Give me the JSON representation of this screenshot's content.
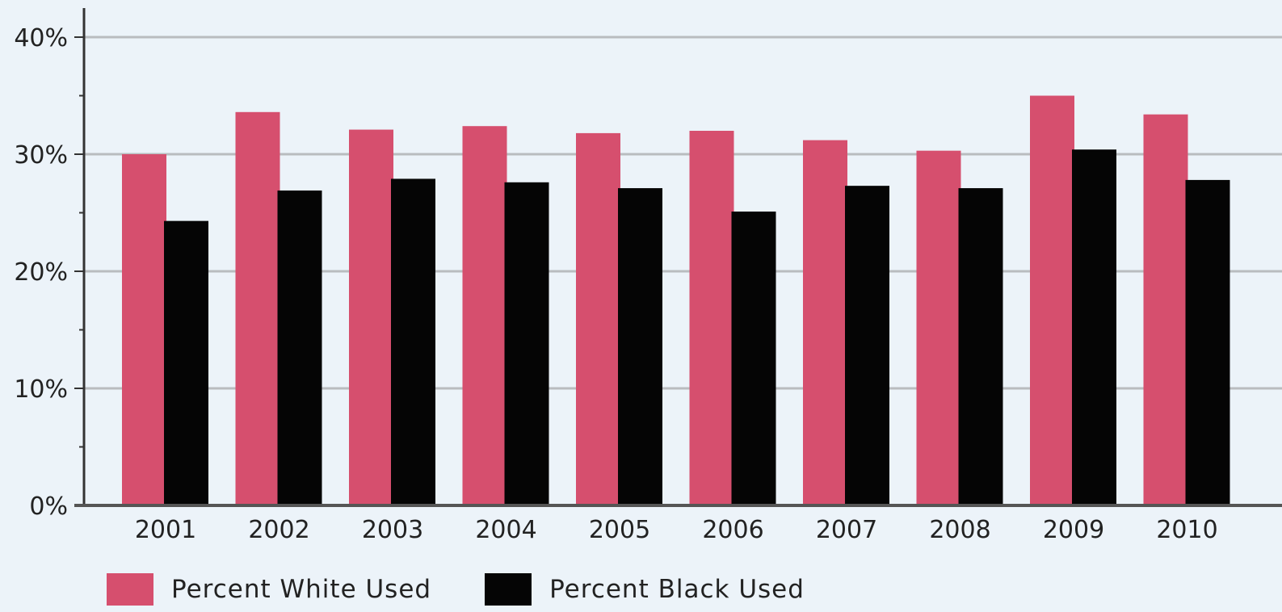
{
  "chart_data": {
    "type": "bar",
    "categories": [
      "2001",
      "2002",
      "2003",
      "2004",
      "2005",
      "2006",
      "2007",
      "2008",
      "2009",
      "2010"
    ],
    "series": [
      {
        "name": "Percent White Used",
        "color": "#d64f6e",
        "values": [
          30.0,
          33.6,
          32.1,
          32.4,
          31.8,
          32.0,
          31.2,
          30.3,
          35.0,
          33.4
        ]
      },
      {
        "name": "Percent Black Used",
        "color": "#050505",
        "values": [
          24.3,
          26.9,
          27.9,
          27.6,
          27.1,
          25.1,
          27.3,
          27.1,
          30.4,
          27.8
        ]
      }
    ],
    "yticks": [
      "0%",
      "10%",
      "20%",
      "30%",
      "40%"
    ],
    "ytick_values": [
      0,
      10,
      20,
      30,
      40
    ],
    "ylim": [
      0,
      42.5
    ],
    "grid": true,
    "legend_position": "bottom-left",
    "title": "",
    "xlabel": "",
    "ylabel": ""
  }
}
